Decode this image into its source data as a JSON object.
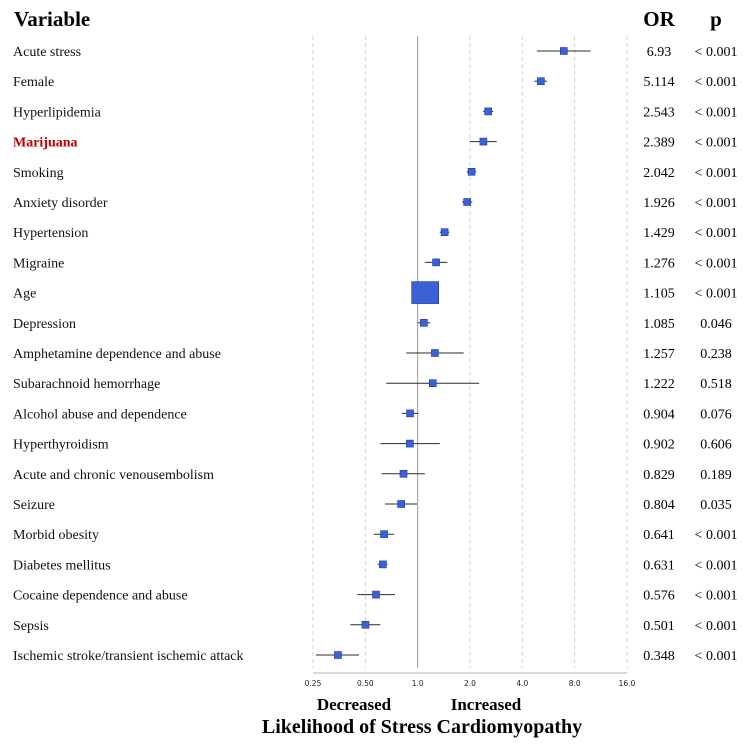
{
  "chart_data": {
    "type": "forest",
    "scale": "log2",
    "headers": {
      "variable": "Variable",
      "or": "OR",
      "p": "p"
    },
    "highlight_color": "#c00000",
    "marker_color": "#3a62d6",
    "xlim": [
      0.25,
      16.0
    ],
    "ticks": [
      "0.25",
      "0.50",
      "1.0",
      "2.0",
      "4.0",
      "8.0",
      "16.0"
    ],
    "tick_values": [
      0.25,
      0.5,
      1,
      2,
      4,
      8,
      16
    ],
    "reference_line": 1.0,
    "direction_labels": {
      "left": "Decreased",
      "right": "Increased"
    },
    "xlabel": "Likelihood of Stress Cardiomyopathy",
    "rows": [
      {
        "label": "Acute stress",
        "or_text": "6.93",
        "p": "< 0.001",
        "or": 6.93,
        "ci": [
          4.85,
          9.9
        ],
        "weight": 1
      },
      {
        "label": "Female",
        "or_text": "5.114",
        "p": "< 0.001",
        "or": 5.114,
        "ci": [
          4.7,
          5.55
        ],
        "weight": 1
      },
      {
        "label": "Hyperlipidemia",
        "or_text": "2.543",
        "p": "< 0.001",
        "or": 2.543,
        "ci": [
          2.38,
          2.72
        ],
        "weight": 1
      },
      {
        "label": "Marijuana",
        "or_text": "2.389",
        "p": "< 0.001",
        "or": 2.389,
        "ci": [
          2.0,
          2.85
        ],
        "weight": 1,
        "highlight": true
      },
      {
        "label": "Smoking",
        "or_text": "2.042",
        "p": "< 0.001",
        "or": 2.042,
        "ci": [
          1.92,
          2.17
        ],
        "weight": 1
      },
      {
        "label": "Anxiety disorder",
        "or_text": "1.926",
        "p": "< 0.001",
        "or": 1.926,
        "ci": [
          1.8,
          2.06
        ],
        "weight": 1
      },
      {
        "label": "Hypertension",
        "or_text": "1.429",
        "p": "< 0.001",
        "or": 1.429,
        "ci": [
          1.34,
          1.52
        ],
        "weight": 1
      },
      {
        "label": "Migraine",
        "or_text": "1.276",
        "p": "< 0.001",
        "or": 1.276,
        "ci": [
          1.1,
          1.48
        ],
        "weight": 1
      },
      {
        "label": "Age",
        "or_text": "1.105",
        "p": "< 0.001",
        "or": 1.105,
        "ci": [
          1.095,
          1.115
        ],
        "weight": 6
      },
      {
        "label": "Depression",
        "or_text": "1.085",
        "p": "0.046",
        "or": 1.085,
        "ci": [
          1.0,
          1.18
        ],
        "weight": 1
      },
      {
        "label": "Amphetamine dependence and abuse",
        "or_text": "1.257",
        "p": "0.238",
        "or": 1.257,
        "ci": [
          0.86,
          1.84
        ],
        "weight": 1
      },
      {
        "label": "Subarachnoid hemorrhage",
        "or_text": "1.222",
        "p": "0.518",
        "or": 1.222,
        "ci": [
          0.66,
          2.26
        ],
        "weight": 1
      },
      {
        "label": "Alcohol abuse and dependence",
        "or_text": "0.904",
        "p": "0.076",
        "or": 0.904,
        "ci": [
          0.81,
          1.01
        ],
        "weight": 1
      },
      {
        "label": "Hyperthyroidism",
        "or_text": "0.902",
        "p": "0.606",
        "or": 0.902,
        "ci": [
          0.61,
          1.34
        ],
        "weight": 1
      },
      {
        "label": "Acute and chronic venousembolism",
        "or_text": "0.829",
        "p": "0.189",
        "or": 0.829,
        "ci": [
          0.62,
          1.1
        ],
        "weight": 1
      },
      {
        "label": "Seizure",
        "or_text": "0.804",
        "p": "0.035",
        "or": 0.804,
        "ci": [
          0.65,
          0.99
        ],
        "weight": 1
      },
      {
        "label": "Morbid obesity",
        "or_text": "0.641",
        "p": "< 0.001",
        "or": 0.641,
        "ci": [
          0.56,
          0.73
        ],
        "weight": 1
      },
      {
        "label": "Diabetes mellitus",
        "or_text": "0.631",
        "p": "< 0.001",
        "or": 0.631,
        "ci": [
          0.59,
          0.67
        ],
        "weight": 1
      },
      {
        "label": "Cocaine dependence and abuse",
        "or_text": "0.576",
        "p": "< 0.001",
        "or": 0.576,
        "ci": [
          0.45,
          0.74
        ],
        "weight": 1
      },
      {
        "label": "Sepsis",
        "or_text": "0.501",
        "p": "< 0.001",
        "or": 0.501,
        "ci": [
          0.41,
          0.61
        ],
        "weight": 1
      },
      {
        "label": "Ischemic stroke/transient ischemic attack",
        "or_text": "0.348",
        "p": "< 0.001",
        "or": 0.348,
        "ci": [
          0.26,
          0.46
        ],
        "weight": 1
      }
    ]
  }
}
